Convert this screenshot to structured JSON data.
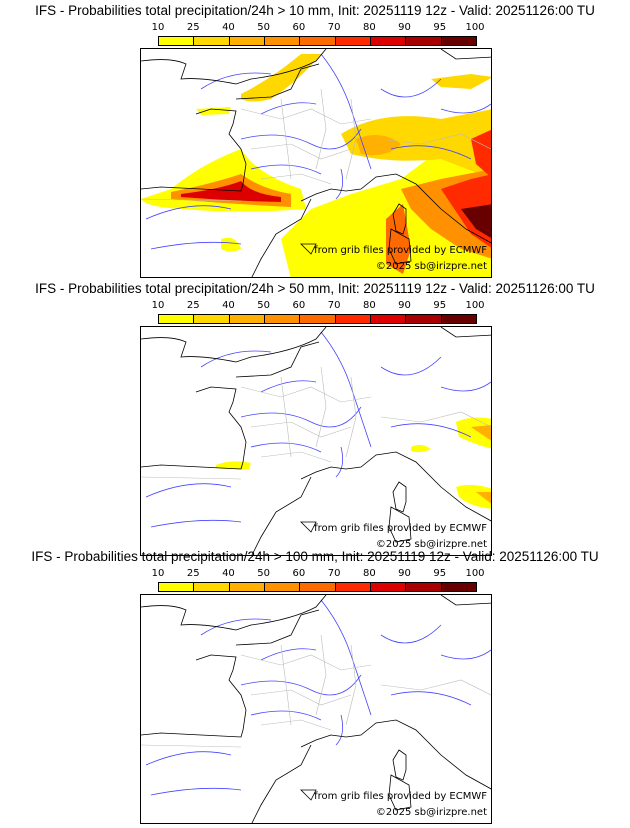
{
  "levels": [
    "10",
    "25",
    "40",
    "50",
    "60",
    "70",
    "80",
    "90",
    "95",
    "100"
  ],
  "colors": [
    "#ffff00",
    "#ffd800",
    "#ffb000",
    "#ff9000",
    "#ff6a00",
    "#ff2a00",
    "#dd0000",
    "#a80000",
    "#680000"
  ],
  "panels": [
    {
      "title": "IFS - Probabilities total precipitation/24h > 10 mm, Init: 20251119 12z - Valid: 20251126:00 TU"
    },
    {
      "title": "IFS - Probabilities total precipitation/24h > 50 mm, Init: 20251119 12z - Valid: 20251126:00 TU"
    },
    {
      "title": "IFS - Probabilities total precipitation/24h > 100 mm, Init: 20251119 12z - Valid: 20251126:00 TU"
    }
  ],
  "credits": {
    "source": "from grib files provided by ECMWF",
    "copyright": "©2025 sb@irizpre.net"
  },
  "chart_data": {
    "type": "heatmap",
    "unit": "%",
    "levels": [
      10,
      25,
      40,
      50,
      60,
      70,
      80,
      90,
      95,
      100
    ],
    "thresholds_mm": [
      10,
      50,
      100
    ],
    "init": "20251119 12z",
    "valid": "20251126:00 TU"
  }
}
